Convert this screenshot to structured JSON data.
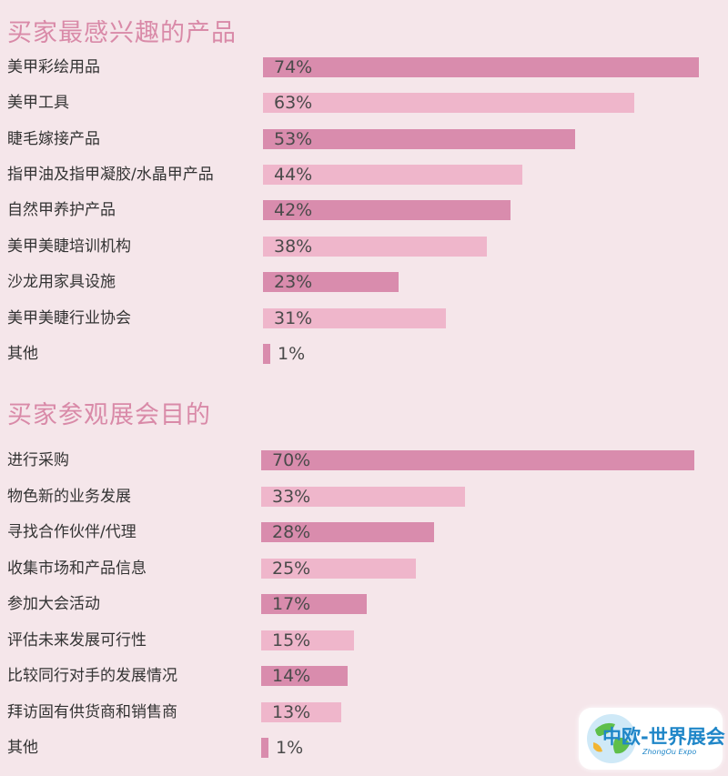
{
  "chart_data": [
    {
      "type": "bar",
      "orientation": "horizontal",
      "title": "买家最感兴趣的产品",
      "categories": [
        "美甲彩绘用品",
        "美甲工具",
        "睫毛嫁接产品",
        "指甲油及指甲凝胶/水晶甲产品",
        "自然甲养护产品",
        "美甲美睫培训机构",
        "沙龙用家具设施",
        "美甲美睫行业协会",
        "其他"
      ],
      "values": [
        74,
        63,
        53,
        44,
        42,
        38,
        23,
        31,
        1
      ],
      "value_labels": [
        "74%",
        "63%",
        "53%",
        "44%",
        "42%",
        "38%",
        "23%",
        "31%",
        "1%"
      ],
      "unit": "%",
      "xlim": [
        0,
        74
      ],
      "grid": false,
      "legend": "none"
    },
    {
      "type": "bar",
      "orientation": "horizontal",
      "title": "买家参观展会目的",
      "categories": [
        "进行采购",
        "物色新的业务发展",
        "寻找合作伙伴/代理",
        "收集市场和产品信息",
        "参加大会活动",
        "评估未来发展可行性",
        "比较同行对手的发展情况",
        "拜访固有供货商和销售商",
        "其他"
      ],
      "values": [
        70,
        33,
        28,
        25,
        17,
        15,
        14,
        13,
        1
      ],
      "value_labels": [
        "70%",
        "33%",
        "28%",
        "25%",
        "17%",
        "15%",
        "14%",
        "13%",
        "1%"
      ],
      "unit": "%",
      "xlim": [
        0,
        70
      ],
      "grid": false,
      "legend": "none"
    }
  ],
  "colors": {
    "background": "#f5e6ea",
    "title": "#d98aa8",
    "bar_dark": "#d98cad",
    "bar_light": "#efb6cb",
    "text": "#333333"
  },
  "logo": {
    "title": "中欧-世界展会",
    "subtitle": "ZhongOu Expo"
  }
}
